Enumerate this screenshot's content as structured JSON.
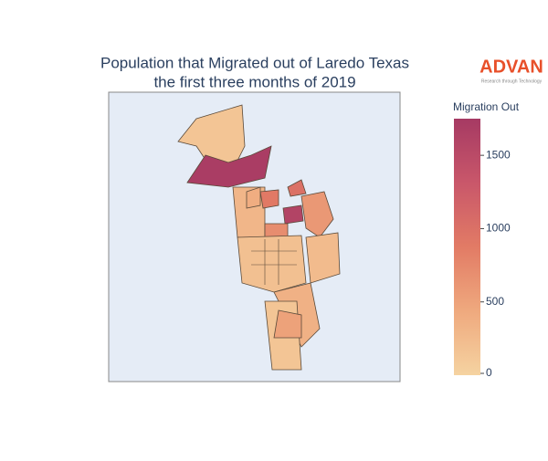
{
  "chart_data": {
    "type": "choropleth",
    "title": [
      "Population that Migrated out of Laredo Texas",
      "the first three months of 2019"
    ],
    "colorbar_title": "Migration Out",
    "values": [
      150,
      1700,
      900,
      1600,
      1000,
      600,
      200,
      300,
      250,
      350,
      150,
      500,
      700,
      400
    ],
    "zlim": [
      0,
      1750
    ],
    "zticks": [
      0,
      500,
      1000,
      1500
    ],
    "colorscale": [
      "#f5d3a1",
      "#efa97e",
      "#e27b65",
      "#c9576a",
      "#a63a63"
    ],
    "logo": {
      "name": "ADVAN",
      "tagline": "Research through Technology"
    }
  }
}
